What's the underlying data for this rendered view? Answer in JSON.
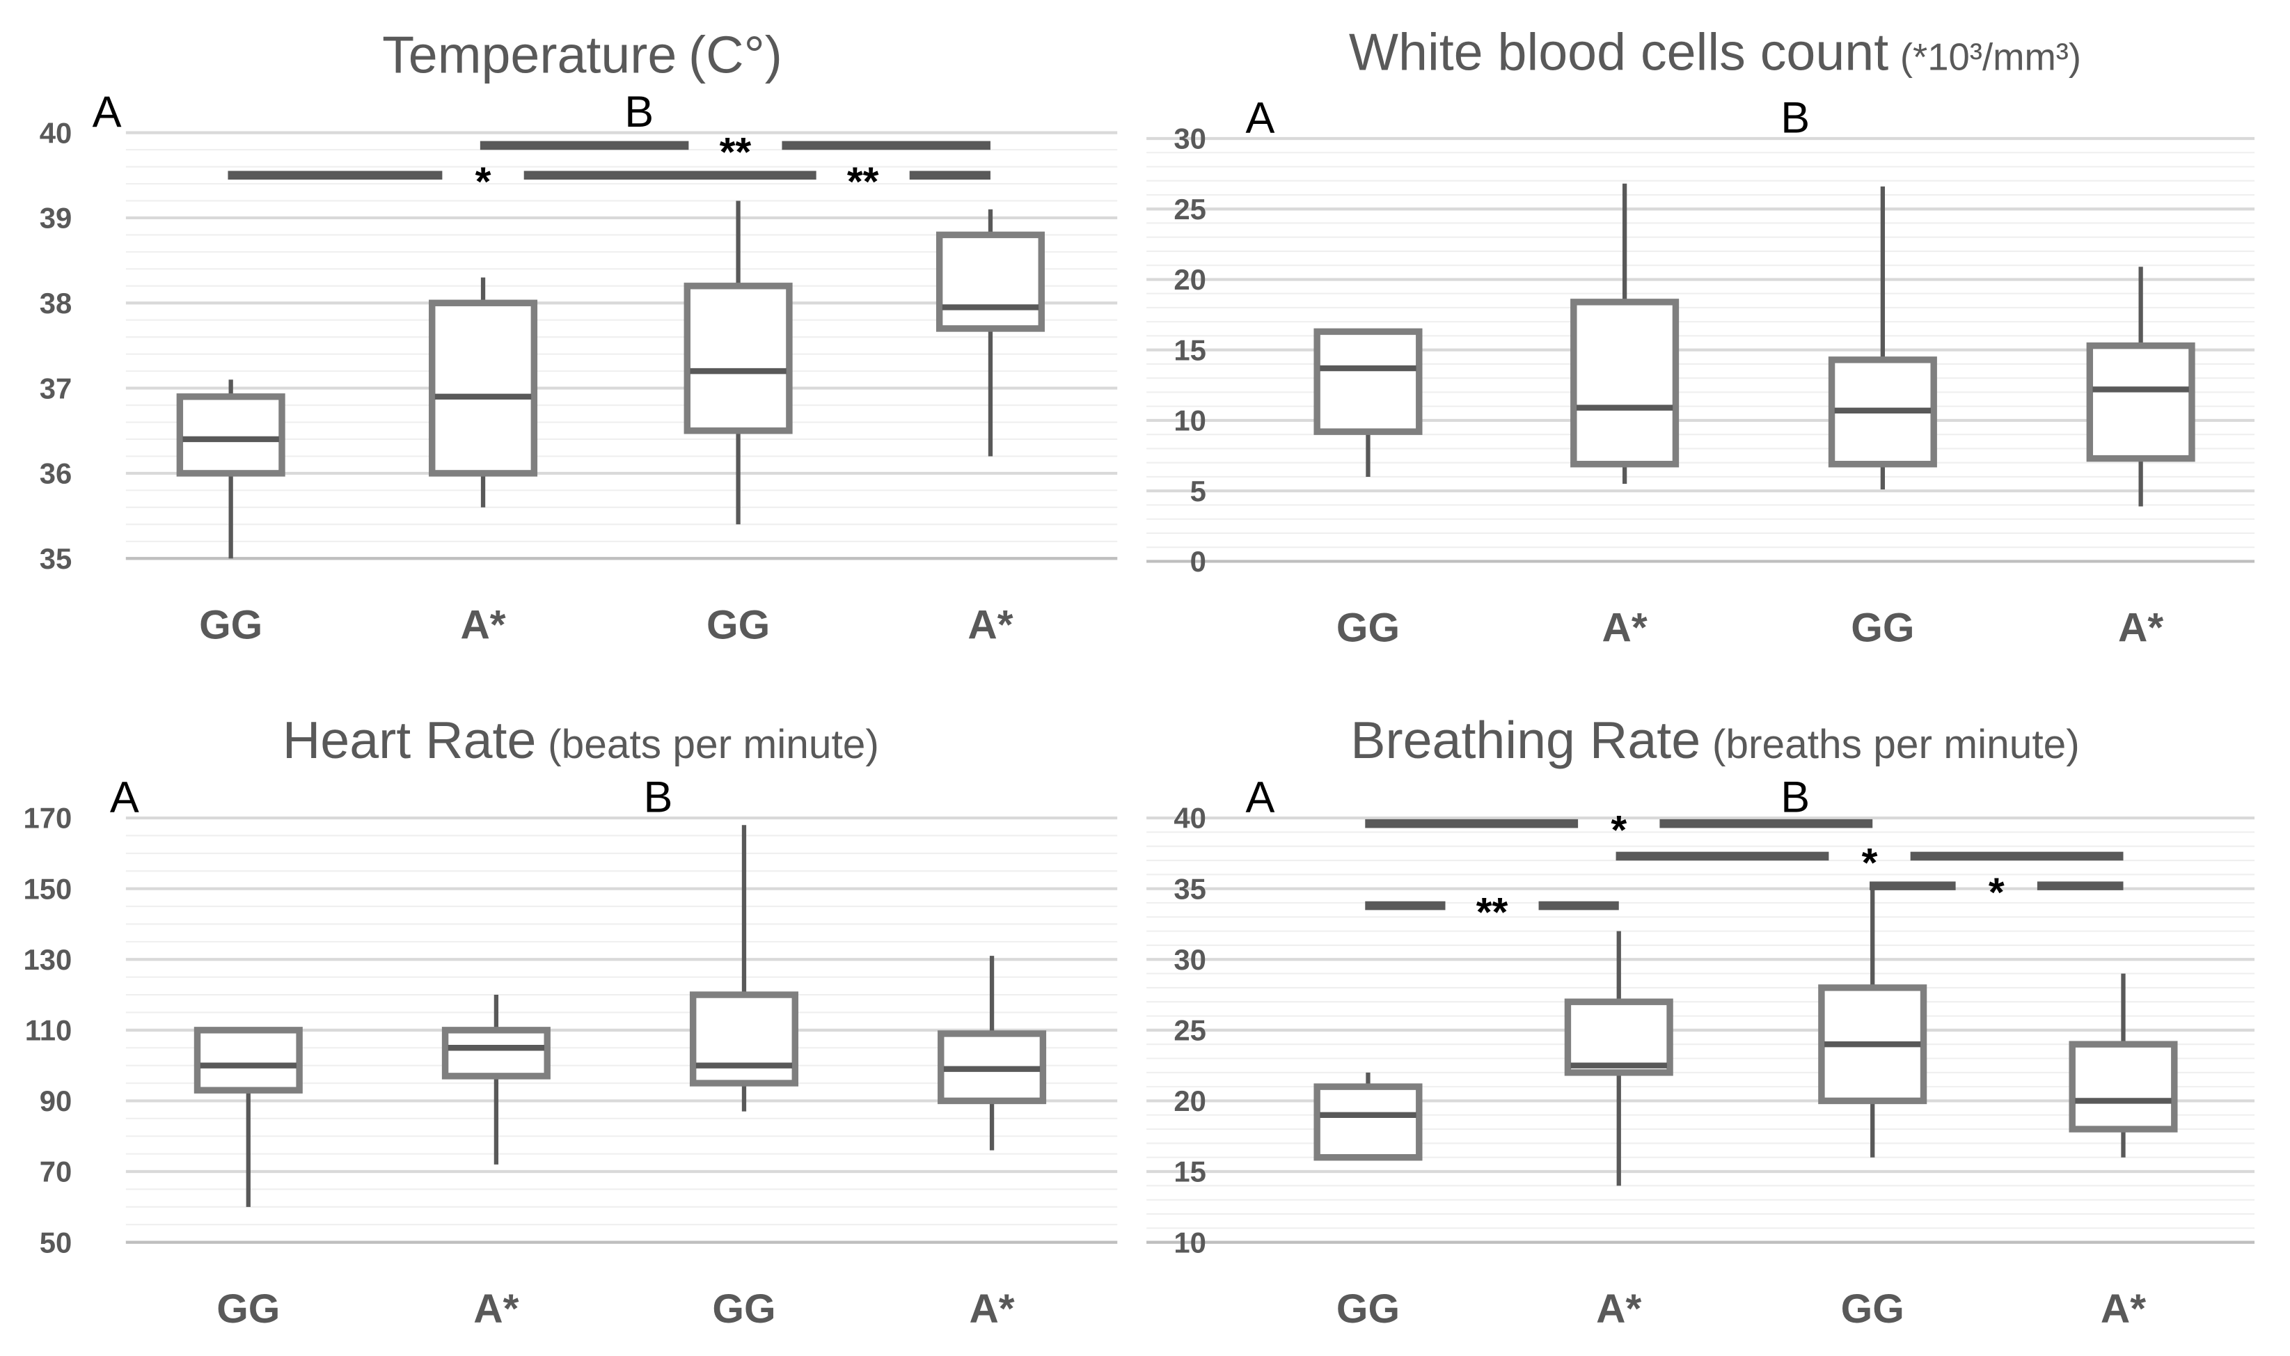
{
  "chart_data": [
    {
      "type": "box",
      "title": "Temperature",
      "title_unit": "(C°)",
      "panel_labels": [
        "A",
        "B"
      ],
      "categories": [
        "GG",
        "A*",
        "GG",
        "A*"
      ],
      "ylim": [
        35,
        40
      ],
      "yticks": [
        35,
        36,
        37,
        38,
        39,
        40
      ],
      "grid": true,
      "boxes": [
        {
          "min": 35.0,
          "q1": 36.0,
          "median": 36.4,
          "q3": 36.9,
          "max": 37.1
        },
        {
          "min": 35.6,
          "q1": 36.0,
          "median": 36.9,
          "q3": 38.0,
          "max": 38.3
        },
        {
          "min": 35.4,
          "q1": 36.5,
          "median": 37.2,
          "q3": 38.2,
          "max": 39.2
        },
        {
          "min": 36.2,
          "q1": 37.7,
          "median": 37.95,
          "q3": 38.8,
          "max": 39.1
        }
      ],
      "significance": [
        {
          "from": 0,
          "to": 2,
          "y": 39.5,
          "label": "*"
        },
        {
          "from": 2,
          "to": 3,
          "y": 39.5,
          "label": "**"
        },
        {
          "from": 1,
          "to": 3,
          "y": 39.85,
          "label": "**"
        }
      ]
    },
    {
      "type": "box",
      "title": "White blood cells count",
      "title_unit": "(*10³/mm³)",
      "panel_labels": [
        "A",
        "B"
      ],
      "categories": [
        "GG",
        "A*",
        "GG",
        "A*"
      ],
      "ylim": [
        0,
        30
      ],
      "yticks": [
        0,
        5,
        10,
        15,
        20,
        25,
        30
      ],
      "grid": true,
      "boxes": [
        {
          "min": 6.0,
          "q1": 9.2,
          "median": 13.7,
          "q3": 16.3,
          "max": 16.3
        },
        {
          "min": 5.5,
          "q1": 6.9,
          "median": 10.9,
          "q3": 18.4,
          "max": 26.8
        },
        {
          "min": 5.1,
          "q1": 6.9,
          "median": 10.7,
          "q3": 14.3,
          "max": 26.6
        },
        {
          "min": 3.9,
          "q1": 7.3,
          "median": 12.2,
          "q3": 15.3,
          "max": 20.9
        }
      ],
      "significance": []
    },
    {
      "type": "box",
      "title": "Heart Rate",
      "title_unit": "(beats per minute)",
      "panel_labels": [
        "A",
        "B"
      ],
      "categories": [
        "GG",
        "A*",
        "GG",
        "A*"
      ],
      "ylim": [
        50,
        170
      ],
      "yticks": [
        50,
        70,
        90,
        110,
        130,
        150,
        170
      ],
      "grid": true,
      "boxes": [
        {
          "min": 60,
          "q1": 93,
          "median": 100,
          "q3": 110,
          "max": 110
        },
        {
          "min": 72,
          "q1": 97,
          "median": 105,
          "q3": 110,
          "max": 120
        },
        {
          "min": 87,
          "q1": 95,
          "median": 100,
          "q3": 120,
          "max": 168
        },
        {
          "min": 76,
          "q1": 90,
          "median": 99,
          "q3": 109,
          "max": 131
        }
      ],
      "significance": []
    },
    {
      "type": "box",
      "title": "Breathing Rate",
      "title_unit": "(breaths per minute)",
      "panel_labels": [
        "A",
        "B"
      ],
      "categories": [
        "GG",
        "A*",
        "GG",
        "A*"
      ],
      "ylim": [
        10,
        40
      ],
      "yticks": [
        10,
        15,
        20,
        25,
        30,
        35,
        40
      ],
      "grid": true,
      "boxes": [
        {
          "min": 16,
          "q1": 16,
          "median": 19,
          "q3": 21,
          "max": 22
        },
        {
          "min": 14,
          "q1": 22,
          "median": 22.5,
          "q3": 27,
          "max": 32
        },
        {
          "min": 16,
          "q1": 20,
          "median": 24,
          "q3": 28,
          "max": 35
        },
        {
          "min": 16,
          "q1": 18,
          "median": 20,
          "q3": 24,
          "max": 29
        }
      ],
      "significance": [
        {
          "from": 0,
          "to": 2,
          "y": 39.6,
          "label": "*"
        },
        {
          "from": 1,
          "to": 3,
          "y": 37.3,
          "label": "*"
        },
        {
          "from": 2,
          "to": 3,
          "y": 35.2,
          "label": "*"
        },
        {
          "from": 0,
          "to": 1,
          "y": 33.8,
          "label": "**"
        }
      ]
    }
  ],
  "colors": {
    "box": "#7f7f7f",
    "median": "#595959",
    "whisker": "#595959",
    "grid_major": "#d9d9d9",
    "grid_minor": "#efefef",
    "text": "#595959"
  }
}
